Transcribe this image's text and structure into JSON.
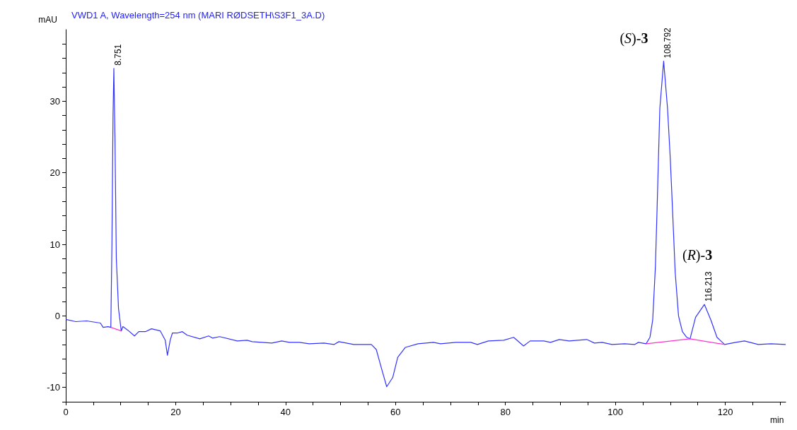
{
  "chart_data": {
    "type": "line",
    "title": "VWD1 A, Wavelength=254 nm (MARI RØDSETH\\S3F1_3A.D)",
    "xlabel": "min",
    "ylabel": "mAU",
    "xlim": [
      0,
      131
    ],
    "ylim": [
      -12,
      40
    ],
    "xticks": [
      0,
      {
        "value": 5,
        "label": null
      },
      {
        "value": 10,
        "label": null
      },
      {
        "value": 15,
        "label": null
      },
      20,
      {
        "value": 25,
        "label": null
      },
      {
        "value": 30,
        "label": null
      },
      {
        "value": 35,
        "label": null
      },
      40,
      {
        "value": 45,
        "label": null
      },
      {
        "value": 50,
        "label": null
      },
      {
        "value": 55,
        "label": null
      },
      60,
      {
        "value": 65,
        "label": null
      },
      {
        "value": 70,
        "label": null
      },
      {
        "value": 75,
        "label": null
      },
      80,
      {
        "value": 85,
        "label": null
      },
      {
        "value": 90,
        "label": null
      },
      {
        "value": 95,
        "label": null
      },
      100,
      {
        "value": 105,
        "label": null
      },
      {
        "value": 110,
        "label": null
      },
      {
        "value": 115,
        "label": null
      },
      120,
      {
        "value": 125,
        "label": null
      },
      {
        "value": 130,
        "label": null
      }
    ],
    "yticks": [
      {
        "value": -12,
        "label": null
      },
      -10,
      {
        "value": -8,
        "label": null
      },
      {
        "value": -6,
        "label": null
      },
      {
        "value": -4,
        "label": null
      },
      {
        "value": -2,
        "label": null
      },
      0,
      {
        "value": 2,
        "label": null
      },
      {
        "value": 4,
        "label": null
      },
      {
        "value": 6,
        "label": null
      },
      {
        "value": 8,
        "label": null
      },
      10,
      {
        "value": 12,
        "label": null
      },
      {
        "value": 14,
        "label": null
      },
      {
        "value": 16,
        "label": null
      },
      {
        "value": 18,
        "label": null
      },
      20,
      {
        "value": 22,
        "label": null
      },
      {
        "value": 24,
        "label": null
      },
      {
        "value": 26,
        "label": null
      },
      {
        "value": 28,
        "label": null
      },
      30,
      {
        "value": 32,
        "label": null
      },
      {
        "value": 34,
        "label": null
      },
      {
        "value": 36,
        "label": null
      },
      {
        "value": 38,
        "label": null
      }
    ],
    "grid": false,
    "marker": "none",
    "line_style": "solid",
    "series": [
      {
        "color": "#3333ff",
        "x": [
          0,
          1.8,
          3.8,
          6.3,
          6.8,
          7.7,
          8.2,
          8.4,
          8.6,
          8.751,
          8.95,
          9.2,
          9.6,
          10.1,
          10.4,
          11.3,
          12.5,
          13.3,
          14.5,
          15.6,
          17.2,
          18.1,
          18.5,
          19.0,
          19.4,
          20.3,
          21.2,
          22.1,
          24.4,
          26.0,
          26.7,
          28.0,
          31.2,
          33.0,
          33.9,
          37.5,
          39.3,
          40.7,
          42.5,
          44.3,
          47.0,
          48.8,
          49.7,
          52.4,
          55.6,
          56.5,
          57.4,
          58.4,
          59.5,
          60.4,
          61.8,
          64.1,
          66.9,
          68.2,
          71.0,
          73.7,
          74.9,
          76.9,
          79.7,
          81.5,
          83.3,
          84.5,
          87.0,
          88.2,
          89.8,
          91.6,
          94.8,
          96.2,
          97.6,
          99.4,
          101.7,
          103.5,
          104.2,
          105.6,
          106.3,
          106.8,
          107.3,
          107.6,
          108.1,
          108.792,
          109.5,
          110.0,
          110.4,
          110.9,
          111.5,
          112.2,
          113.0,
          113.6,
          114.6,
          116.213,
          117.4,
          118.5,
          119.9,
          121.9,
          123.5,
          126.0,
          128.3,
          131
        ],
        "values": [
          -0.5,
          -0.8,
          -0.7,
          -1.0,
          -1.6,
          -1.5,
          -1.6,
          10,
          28,
          34.6,
          25,
          8,
          1,
          -2.1,
          -1.5,
          -2.0,
          -2.8,
          -2.2,
          -2.2,
          -1.8,
          -2.1,
          -3.4,
          -5.5,
          -3.4,
          -2.4,
          -2.4,
          -2.2,
          -2.7,
          -3.2,
          -2.8,
          -3.1,
          -2.9,
          -3.5,
          -3.4,
          -3.6,
          -3.8,
          -3.5,
          -3.7,
          -3.7,
          -3.9,
          -3.8,
          -4.0,
          -3.6,
          -4.0,
          -4.0,
          -4.7,
          -7.2,
          -9.9,
          -8.6,
          -5.8,
          -4.4,
          -3.9,
          -3.7,
          -3.9,
          -3.7,
          -3.7,
          -4.0,
          -3.5,
          -3.4,
          -3.0,
          -4.2,
          -3.5,
          -3.5,
          -3.7,
          -3.3,
          -3.5,
          -3.3,
          -3.8,
          -3.7,
          -4.0,
          -3.9,
          -4.0,
          -3.7,
          -3.9,
          -3.0,
          -0.6,
          7,
          15,
          29,
          35.6,
          29,
          22,
          15,
          6,
          0,
          -2.2,
          -3.0,
          -3.2,
          -0.2,
          1.6,
          -0.6,
          -3.0,
          -4.0,
          -3.7,
          -3.5,
          -4.0,
          -3.9,
          -4.0
        ]
      },
      {
        "color": "#ff33cc",
        "x": [
          8.2,
          10.1,
          50,
          105.6,
          113.6,
          119.9
        ],
        "values": [
          -1.6,
          -2.1,
          null,
          -3.9,
          -3.2,
          -4.0
        ]
      }
    ],
    "annotations": [
      {
        "text": "8.751",
        "x": 8.751,
        "y": 34.6
      },
      {
        "text": "108.792",
        "x": 108.792,
        "y": 35.6
      },
      {
        "text": "(S)-3",
        "x": 108.792,
        "y": 35.6
      },
      {
        "text": "116.213",
        "x": 116.213,
        "y": 1.6
      },
      {
        "text": "(R)-3",
        "x": 116.213,
        "y": 1.6
      }
    ]
  }
}
